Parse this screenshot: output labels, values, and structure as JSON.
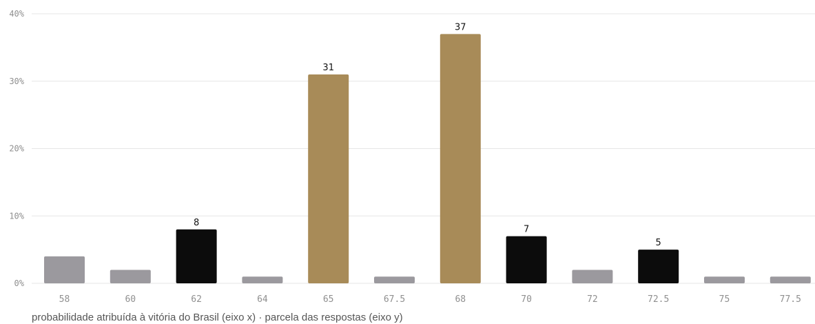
{
  "caption": "probabilidade atribuída à vitória do Brasil (eixo x) · parcela das respostas (eixo y)",
  "colors": {
    "gray": "#9b999e",
    "black": "#0c0c0c",
    "gold": "#a88b58",
    "grid": "#e6e6e6",
    "tick": "#8f8f8f"
  },
  "chart_data": {
    "type": "bar",
    "title": "",
    "xlabel": "probabilidade atribuída à vitória do Brasil",
    "ylabel": "parcela das respostas",
    "ylim": [
      0,
      40
    ],
    "yticks": [
      {
        "value": 0,
        "label": "0%"
      },
      {
        "value": 10,
        "label": "10%"
      },
      {
        "value": 20,
        "label": "20%"
      },
      {
        "value": 30,
        "label": "30%"
      },
      {
        "value": 40,
        "label": "40%"
      }
    ],
    "grid": true,
    "categories": [
      "58",
      "60",
      "62",
      "64",
      "65",
      "67.5",
      "68",
      "70",
      "72",
      "72.5",
      "75",
      "77.5"
    ],
    "values": [
      4,
      2,
      8,
      1,
      31,
      1,
      37,
      7,
      2,
      5,
      1,
      1
    ],
    "bar_colors": [
      "gray",
      "gray",
      "black",
      "gray",
      "gold",
      "gray",
      "gold",
      "black",
      "gray",
      "black",
      "gray",
      "gray"
    ],
    "data_labels": [
      "",
      "",
      "8",
      "",
      "31",
      "",
      "37",
      "7",
      "",
      "5",
      "",
      ""
    ]
  }
}
